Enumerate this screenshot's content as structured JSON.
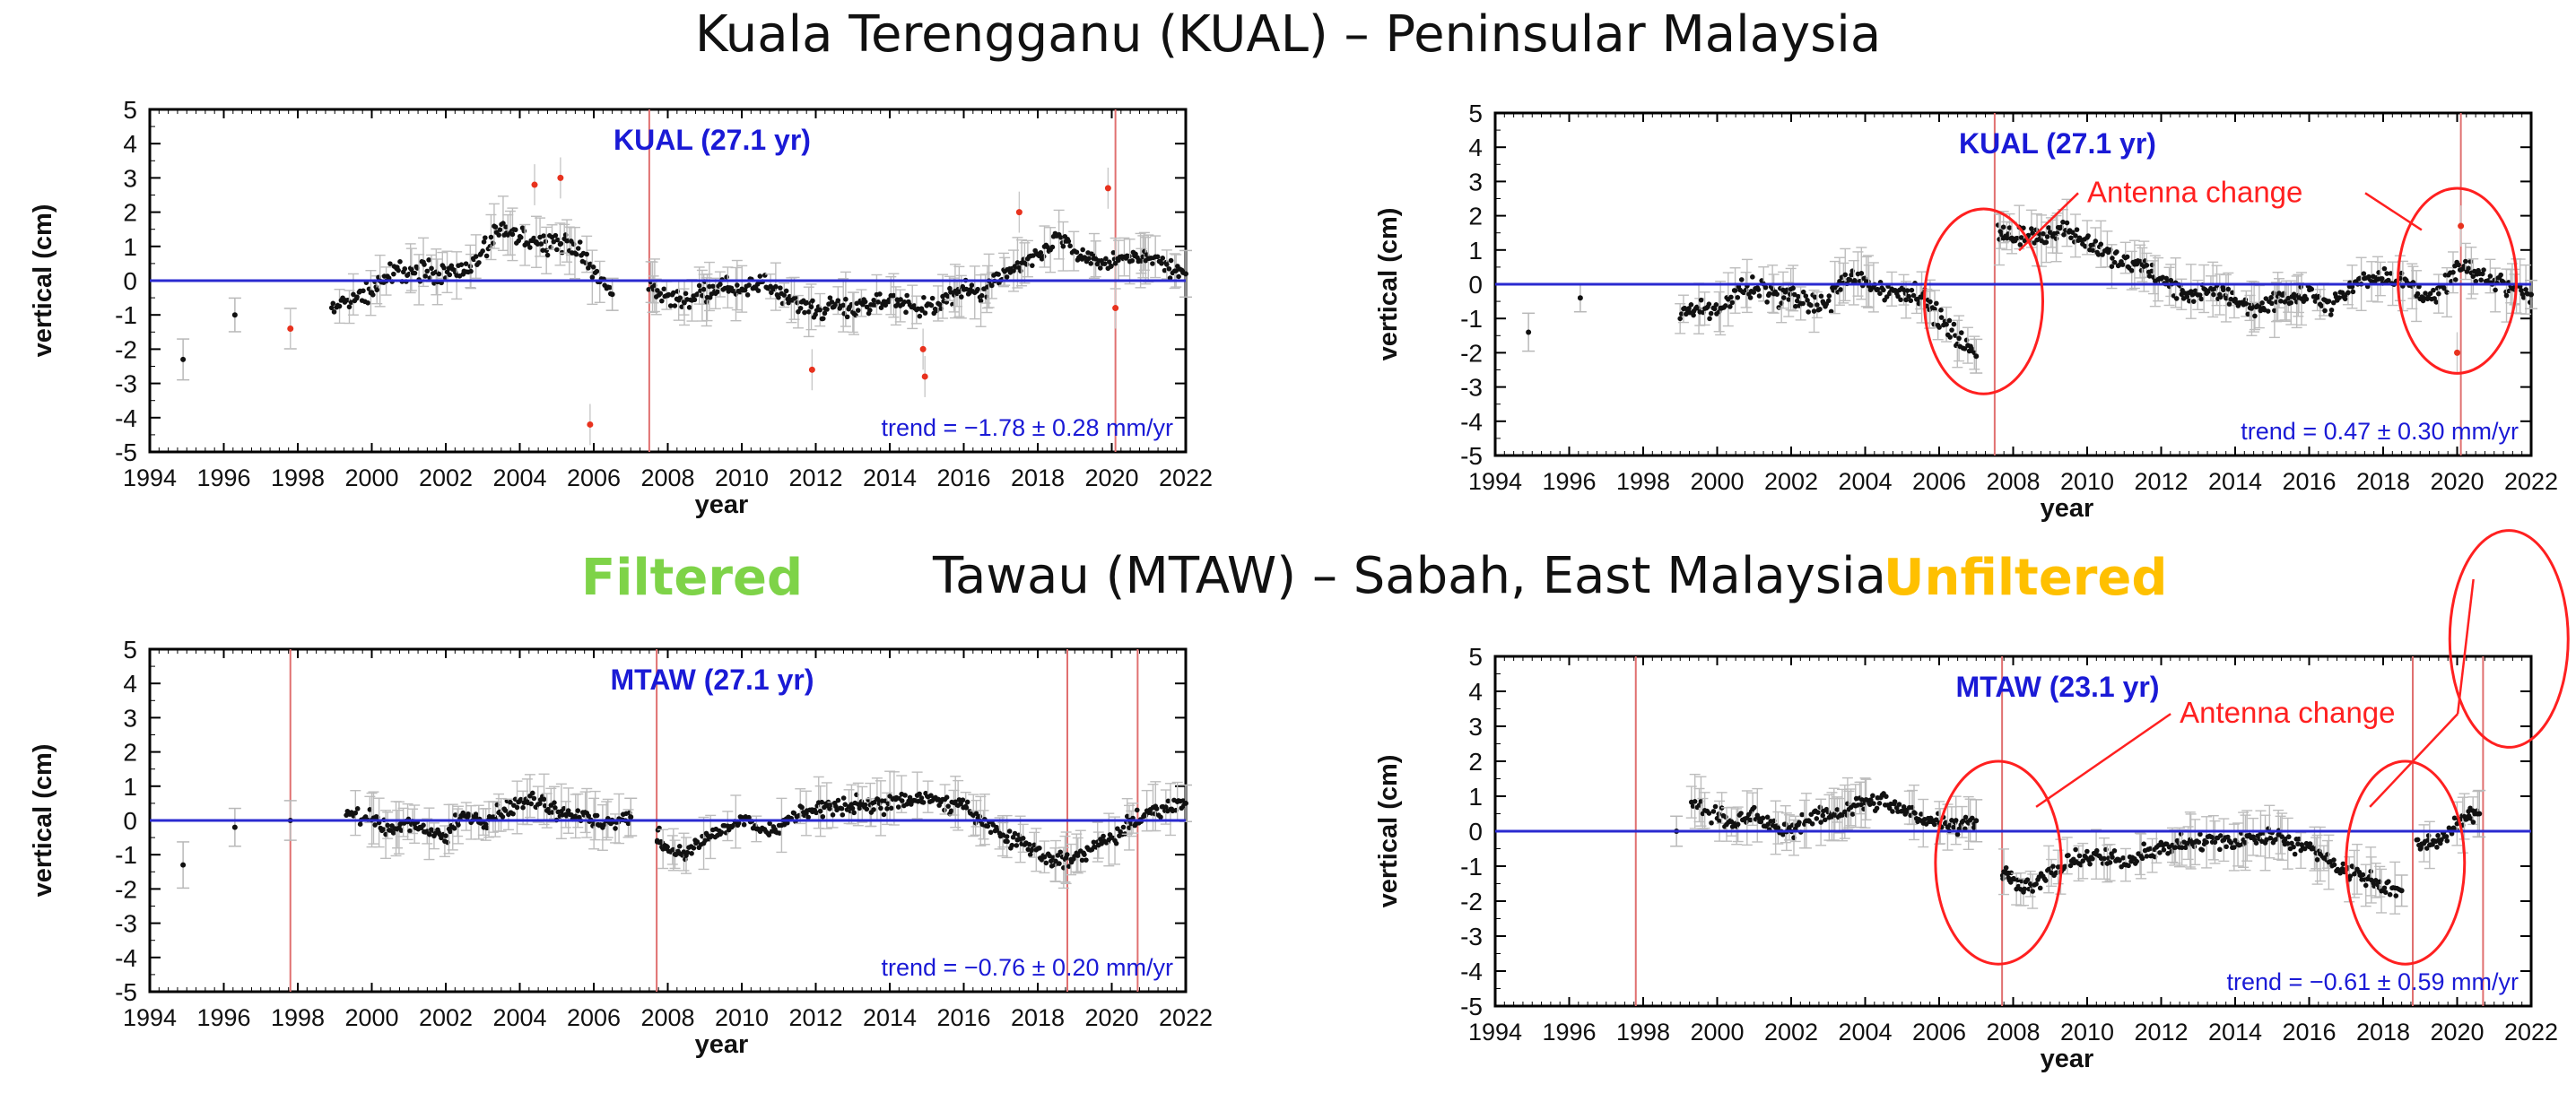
{
  "figure": {
    "title_top": "Kuala Terengganu (KUAL) – Peninsular Malaysia",
    "title_mid": "Tawau (MTAW) – Sabah, East Malaysia",
    "label_filtered": "Filtered",
    "label_unfiltered": "Unfiltered",
    "color_filtered": "#7ed348",
    "color_unfiltered": "#ffc000",
    "color_station": "#1a1ad6",
    "color_annotation": "#ff2020",
    "color_zero_line": "#2a2ad0",
    "color_offset_line": "#e07070"
  },
  "chart_data": [
    {
      "id": "kual-filtered",
      "type": "scatter",
      "station_label": "KUAL (27.1 yr)",
      "trend_label": "trend = −1.78 ± 0.28 mm/yr",
      "xlabel": "year",
      "ylabel": "vertical (cm)",
      "xlim": [
        1994,
        2022
      ],
      "ylim": [
        -5,
        5
      ],
      "xticks": [
        1994,
        1996,
        1998,
        2000,
        2002,
        2004,
        2006,
        2008,
        2010,
        2012,
        2014,
        2016,
        2018,
        2020,
        2022
      ],
      "yticks": [
        -5,
        -4,
        -3,
        -2,
        -1,
        0,
        1,
        2,
        3,
        4,
        5
      ],
      "offset_lines": [
        2007.5,
        2020.1
      ],
      "annotation": null,
      "outliers": [
        [
          1997.8,
          -1.4
        ],
        [
          2004.4,
          2.8
        ],
        [
          2005.1,
          3.0
        ],
        [
          2005.9,
          -4.2
        ],
        [
          2011.9,
          -2.6
        ],
        [
          2014.9,
          -2.0
        ],
        [
          2014.95,
          -2.8
        ],
        [
          2017.5,
          2.0
        ],
        [
          2019.9,
          2.7
        ],
        [
          2020.1,
          -0.8
        ]
      ],
      "segments": [
        {
          "x": [
            1994.9,
            1996.3,
            1997.8
          ],
          "y": [
            -2.3,
            -1.0,
            -1.4
          ],
          "noise": 0.0
        },
        {
          "x": [
            1998.9,
            1999.5,
            2000.0,
            2000.5,
            2001.0,
            2001.5,
            2002.0,
            2002.5,
            2003.0,
            2003.5,
            2004.0,
            2004.5,
            2005.0,
            2005.5,
            2006.0,
            2006.5
          ],
          "y": [
            -0.8,
            -0.6,
            -0.3,
            0.2,
            0.3,
            0.3,
            0.2,
            0.3,
            0.8,
            1.5,
            1.2,
            1.2,
            1.1,
            1.0,
            0.3,
            -0.4
          ],
          "noise": 0.5
        },
        {
          "x": [
            2007.5,
            2008.0,
            2008.5,
            2009.0,
            2009.5,
            2010.0,
            2010.5,
            2011.0,
            2011.5,
            2012.0,
            2012.5,
            2013.0,
            2013.5,
            2014.0,
            2014.5,
            2015.0,
            2015.5,
            2016.0,
            2016.5,
            2017.0,
            2017.5,
            2018.0,
            2018.5,
            2019.0,
            2019.5,
            2020.0,
            2020.5,
            2021.0,
            2021.5,
            2022.0
          ],
          "y": [
            -0.2,
            -0.5,
            -0.6,
            -0.3,
            -0.2,
            -0.3,
            -0.1,
            -0.4,
            -0.6,
            -0.9,
            -0.7,
            -0.8,
            -0.8,
            -0.5,
            -0.7,
            -0.8,
            -0.6,
            -0.2,
            -0.4,
            0.1,
            0.4,
            0.6,
            1.3,
            0.8,
            0.6,
            0.5,
            0.6,
            0.7,
            0.4,
            0.2
          ],
          "noise": 0.45
        }
      ]
    },
    {
      "id": "kual-unfiltered",
      "type": "scatter",
      "station_label": "KUAL (27.1 yr)",
      "trend_label": "trend = 0.47 ± 0.30 mm/yr",
      "xlabel": "year",
      "ylabel": "vertical (cm)",
      "xlim": [
        1994,
        2022
      ],
      "ylim": [
        -5,
        5
      ],
      "xticks": [
        1994,
        1996,
        1998,
        2000,
        2002,
        2004,
        2006,
        2008,
        2010,
        2012,
        2014,
        2016,
        2018,
        2020,
        2022
      ],
      "yticks": [
        -5,
        -4,
        -3,
        -2,
        -1,
        0,
        1,
        2,
        3,
        4,
        5
      ],
      "offset_lines": [
        2007.5,
        2020.1
      ],
      "annotation": {
        "text": "Antenna  change",
        "ellipses": [
          {
            "x": 2007.2,
            "y": -0.5,
            "rx": 1.6,
            "ry": 2.7
          },
          {
            "x": 2020.0,
            "y": 0.1,
            "rx": 1.6,
            "ry": 2.7
          }
        ],
        "label_at": [
          2010.0,
          2.4
        ]
      },
      "outliers": [
        [
          2020.1,
          1.7
        ],
        [
          2020.0,
          -2.0
        ]
      ],
      "segments": [
        {
          "x": [
            1994.9,
            1996.3
          ],
          "y": [
            -1.4,
            -0.4
          ],
          "noise": 0.0
        },
        {
          "x": [
            1999.0,
            1999.5,
            2000.0,
            2000.5,
            2001.0,
            2001.5,
            2002.0,
            2002.5,
            2003.0,
            2003.5,
            2004.0,
            2004.5,
            2005.0,
            2005.5,
            2006.0,
            2006.5,
            2007.0
          ],
          "y": [
            -0.8,
            -0.6,
            -0.8,
            -0.2,
            -0.1,
            -0.3,
            -0.3,
            -0.6,
            -0.5,
            0.2,
            0.1,
            -0.2,
            -0.2,
            -0.3,
            -1.0,
            -1.6,
            -2.1
          ],
          "noise": 0.5
        },
        {
          "x": [
            2007.6,
            2008.0,
            2008.5,
            2009.0,
            2009.5,
            2010.0,
            2010.5,
            2011.0,
            2011.5,
            2012.0,
            2012.5,
            2013.0,
            2013.5,
            2014.0,
            2014.5,
            2015.0,
            2015.5,
            2016.0,
            2016.5,
            2017.0,
            2017.5,
            2018.0,
            2018.5,
            2019.0,
            2019.5,
            2020.0,
            2020.5,
            2021.0,
            2021.5,
            2022.0
          ],
          "y": [
            1.6,
            1.3,
            1.4,
            1.5,
            1.6,
            1.2,
            0.9,
            0.6,
            0.5,
            0.1,
            -0.2,
            -0.3,
            -0.2,
            -0.4,
            -0.8,
            -0.5,
            -0.4,
            -0.3,
            -0.6,
            -0.2,
            0.2,
            0.3,
            0.1,
            -0.2,
            -0.3,
            0.5,
            0.3,
            0.1,
            -0.1,
            -0.3
          ],
          "noise": 0.45
        }
      ]
    },
    {
      "id": "mtaw-filtered",
      "type": "scatter",
      "station_label": "MTAW (27.1 yr)",
      "trend_label": "trend = −0.76 ± 0.20 mm/yr",
      "xlabel": "year",
      "ylabel": "vertical (cm)",
      "xlim": [
        1994,
        2022
      ],
      "ylim": [
        -5,
        5
      ],
      "xticks": [
        1994,
        1996,
        1998,
        2000,
        2002,
        2004,
        2006,
        2008,
        2010,
        2012,
        2014,
        2016,
        2018,
        2020,
        2022
      ],
      "yticks": [
        -5,
        -4,
        -3,
        -2,
        -1,
        0,
        1,
        2,
        3,
        4,
        5
      ],
      "offset_lines": [
        1997.8,
        2007.7,
        2018.8,
        2020.7
      ],
      "annotation": null,
      "outliers": [],
      "segments": [
        {
          "x": [
            1994.9,
            1996.3,
            1997.8
          ],
          "y": [
            -1.3,
            -0.2,
            0.0
          ],
          "noise": 0.0
        },
        {
          "x": [
            1999.3,
            2000.0,
            2000.5,
            2001.0,
            2001.5,
            2002.0,
            2002.5,
            2003.0,
            2003.5,
            2004.0,
            2004.5,
            2005.0,
            2005.5,
            2006.0,
            2006.5,
            2007.0
          ],
          "y": [
            0.3,
            0.0,
            -0.3,
            0.0,
            -0.4,
            -0.5,
            0.2,
            0.0,
            0.3,
            0.5,
            0.6,
            0.3,
            0.2,
            0.0,
            -0.1,
            0.1
          ],
          "noise": 0.4
        },
        {
          "x": [
            2007.7,
            2008.0,
            2008.5,
            2009.0,
            2009.5,
            2010.0,
            2010.5,
            2011.0,
            2011.5,
            2012.0,
            2012.5,
            2013.0,
            2013.5,
            2014.0,
            2014.5,
            2015.0,
            2015.5,
            2016.0,
            2016.5,
            2017.0,
            2017.5,
            2018.0,
            2018.5,
            2019.0,
            2019.5,
            2020.0,
            2020.5,
            2021.0,
            2021.5,
            2022.0
          ],
          "y": [
            -0.4,
            -0.8,
            -1.0,
            -0.5,
            -0.3,
            0.0,
            -0.2,
            -0.3,
            0.2,
            0.3,
            0.4,
            0.5,
            0.4,
            0.5,
            0.6,
            0.7,
            0.5,
            0.4,
            0.0,
            -0.4,
            -0.6,
            -0.9,
            -1.2,
            -1.1,
            -0.8,
            -0.5,
            -0.1,
            0.2,
            0.4,
            0.5
          ],
          "noise": 0.4
        }
      ]
    },
    {
      "id": "mtaw-unfiltered",
      "type": "scatter",
      "station_label": "MTAW (23.1 yr)",
      "trend_label": "trend = −0.61 ± 0.59 mm/yr",
      "xlabel": "year",
      "ylabel": "vertical (cm)",
      "xlim": [
        1994,
        2022
      ],
      "ylim": [
        -5,
        5
      ],
      "xticks": [
        1994,
        1996,
        1998,
        2000,
        2002,
        2004,
        2006,
        2008,
        2010,
        2012,
        2014,
        2016,
        2018,
        2020,
        2022
      ],
      "yticks": [
        -5,
        -4,
        -3,
        -2,
        -1,
        0,
        1,
        2,
        3,
        4,
        5
      ],
      "offset_lines": [
        1997.8,
        2007.7,
        2018.8,
        2020.7
      ],
      "annotation": {
        "text": "Antenna  change",
        "ellipses": [
          {
            "x": 2007.6,
            "y": -0.9,
            "rx": 1.7,
            "ry": 2.9
          },
          {
            "x": 2018.6,
            "y": -0.9,
            "rx": 1.6,
            "ry": 2.9
          },
          {
            "x": 2021.4,
            "y": 5.5,
            "rx": 1.6,
            "ry": 3.1
          }
        ],
        "label_at": [
          2012.5,
          3.1
        ]
      },
      "outliers": [],
      "segments": [
        {
          "x": [
            1998.9
          ],
          "y": [
            0.0
          ],
          "noise": 0.0
        },
        {
          "x": [
            1999.3,
            2000.0,
            2000.5,
            2001.0,
            2001.5,
            2002.0,
            2002.5,
            2003.0,
            2003.5,
            2004.0,
            2004.5,
            2005.0,
            2005.5,
            2006.0,
            2006.5,
            2007.0
          ],
          "y": [
            0.7,
            0.5,
            0.2,
            0.5,
            0.1,
            0.0,
            0.4,
            0.4,
            0.6,
            0.8,
            0.9,
            0.6,
            0.4,
            0.3,
            0.2,
            0.3
          ],
          "noise": 0.4
        },
        {
          "x": [
            2007.7,
            2008.0,
            2008.5,
            2009.0,
            2009.5,
            2010.0,
            2010.5,
            2011.0,
            2011.5,
            2012.0,
            2012.5,
            2013.0,
            2013.5,
            2014.0,
            2014.5,
            2015.0,
            2015.5,
            2016.0,
            2016.5,
            2017.0,
            2017.5,
            2018.0,
            2018.5
          ],
          "y": [
            -1.1,
            -1.4,
            -1.6,
            -1.2,
            -0.9,
            -0.7,
            -0.8,
            -0.9,
            -0.6,
            -0.5,
            -0.4,
            -0.3,
            -0.3,
            -0.3,
            -0.2,
            -0.1,
            -0.3,
            -0.5,
            -0.8,
            -1.1,
            -1.3,
            -1.6,
            -1.7
          ],
          "noise": 0.4
        },
        {
          "x": [
            2018.9,
            2019.3,
            2019.7,
            2020.2,
            2020.6
          ],
          "y": [
            -0.4,
            -0.3,
            -0.1,
            0.4,
            0.5
          ],
          "noise": 0.35
        }
      ]
    }
  ]
}
